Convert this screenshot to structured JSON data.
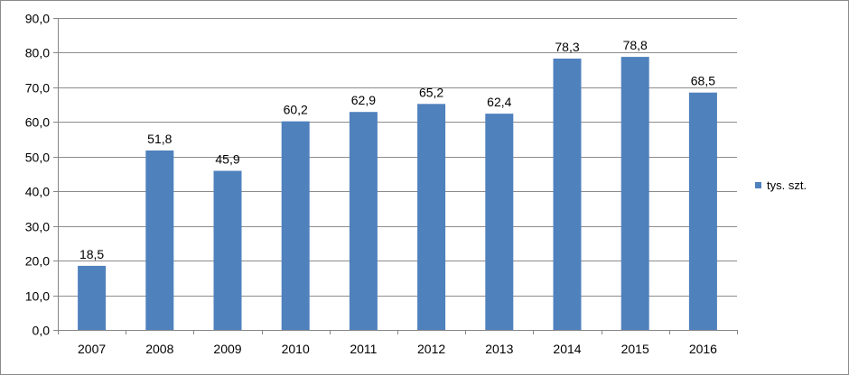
{
  "chart_data": {
    "type": "bar",
    "title": "",
    "xlabel": "",
    "ylabel": "",
    "categories": [
      "2007",
      "2008",
      "2009",
      "2010",
      "2011",
      "2012",
      "2013",
      "2014",
      "2015",
      "2016"
    ],
    "series": [
      {
        "name": "tys. szt.",
        "color": "#4f81bd",
        "values": [
          18.5,
          51.8,
          45.9,
          60.2,
          62.9,
          65.2,
          62.4,
          78.3,
          78.8,
          68.5
        ],
        "value_labels": [
          "18,5",
          "51,8",
          "45,9",
          "60,2",
          "62,9",
          "65,2",
          "62,4",
          "78,3",
          "78,8",
          "68,5"
        ]
      }
    ],
    "ylim": [
      0,
      90
    ],
    "y_ticks": [
      0,
      10,
      20,
      30,
      40,
      50,
      60,
      70,
      80,
      90
    ],
    "y_tick_labels": [
      "0,0",
      "10,0",
      "20,0",
      "30,0",
      "40,0",
      "50,0",
      "60,0",
      "70,0",
      "80,0",
      "90,0"
    ],
    "grid": true,
    "legend_position": "right",
    "colors": {
      "bar": "#4f81bd",
      "grid": "#8c8c8c",
      "axis": "#868686"
    }
  }
}
